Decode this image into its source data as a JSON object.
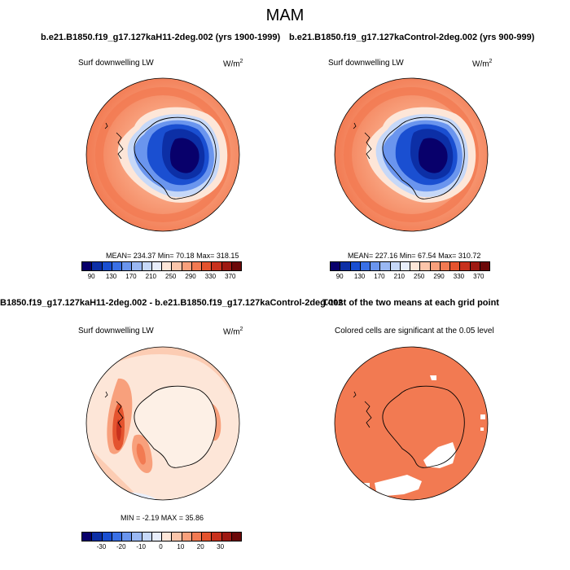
{
  "title": "MAM",
  "panels": [
    {
      "case_title": "b.e21.B1850.f19_g17.127kaH11-2deg.002 (yrs 1900-1999)",
      "label": "Surf downwelling LW",
      "units_base": "W/m",
      "units_sup": "2",
      "stats": "MEAN= 234.37  Min=  70.18  Max= 318.15"
    },
    {
      "case_title": "b.e21.B1850.f19_g17.127kaControl-2deg.002 (yrs 900-999)",
      "label": "Surf downwelling LW",
      "units_base": "W/m",
      "units_sup": "2",
      "stats": "MEAN= 227.16  Min=  67.54  Max= 310.72"
    },
    {
      "case_title": "B1850.f19_g17.127kaH11-2deg.002 - b.e21.B1850.f19_g17.127kaControl-2deg.002",
      "label": "Surf downwelling LW",
      "units_base": "W/m",
      "units_sup": "2",
      "stats": "MIN =  -2.19 MAX =  35.86"
    },
    {
      "case_title": "T-test of the two means at each grid point",
      "label": "Colored cells are significant at the 0.05 level"
    }
  ],
  "colorbars": {
    "abs": {
      "colors": [
        "#08006b",
        "#0c2fa6",
        "#1a4fd1",
        "#3a70e6",
        "#6a95ee",
        "#9ab8f3",
        "#c6d8f8",
        "#e8eefb",
        "#fde6d8",
        "#fbc5aa",
        "#f8a07c",
        "#f27a52",
        "#e4532e",
        "#c8311d",
        "#9e1912",
        "#6b0808"
      ],
      "labels": [
        "90",
        "130",
        "170",
        "210",
        "250",
        "290",
        "330",
        "370"
      ]
    },
    "diff": {
      "colors": [
        "#08006b",
        "#0c2fa6",
        "#1a4fd1",
        "#3a70e6",
        "#6a95ee",
        "#9ab8f3",
        "#c6d8f8",
        "#e8eefb",
        "#fde6d8",
        "#fbc5aa",
        "#f8a07c",
        "#f27a52",
        "#e4532e",
        "#c8311d",
        "#9e1912",
        "#6b0808"
      ],
      "labels": [
        "-30",
        "-20",
        "-10",
        "0",
        "10",
        "20",
        "30"
      ]
    }
  }
}
